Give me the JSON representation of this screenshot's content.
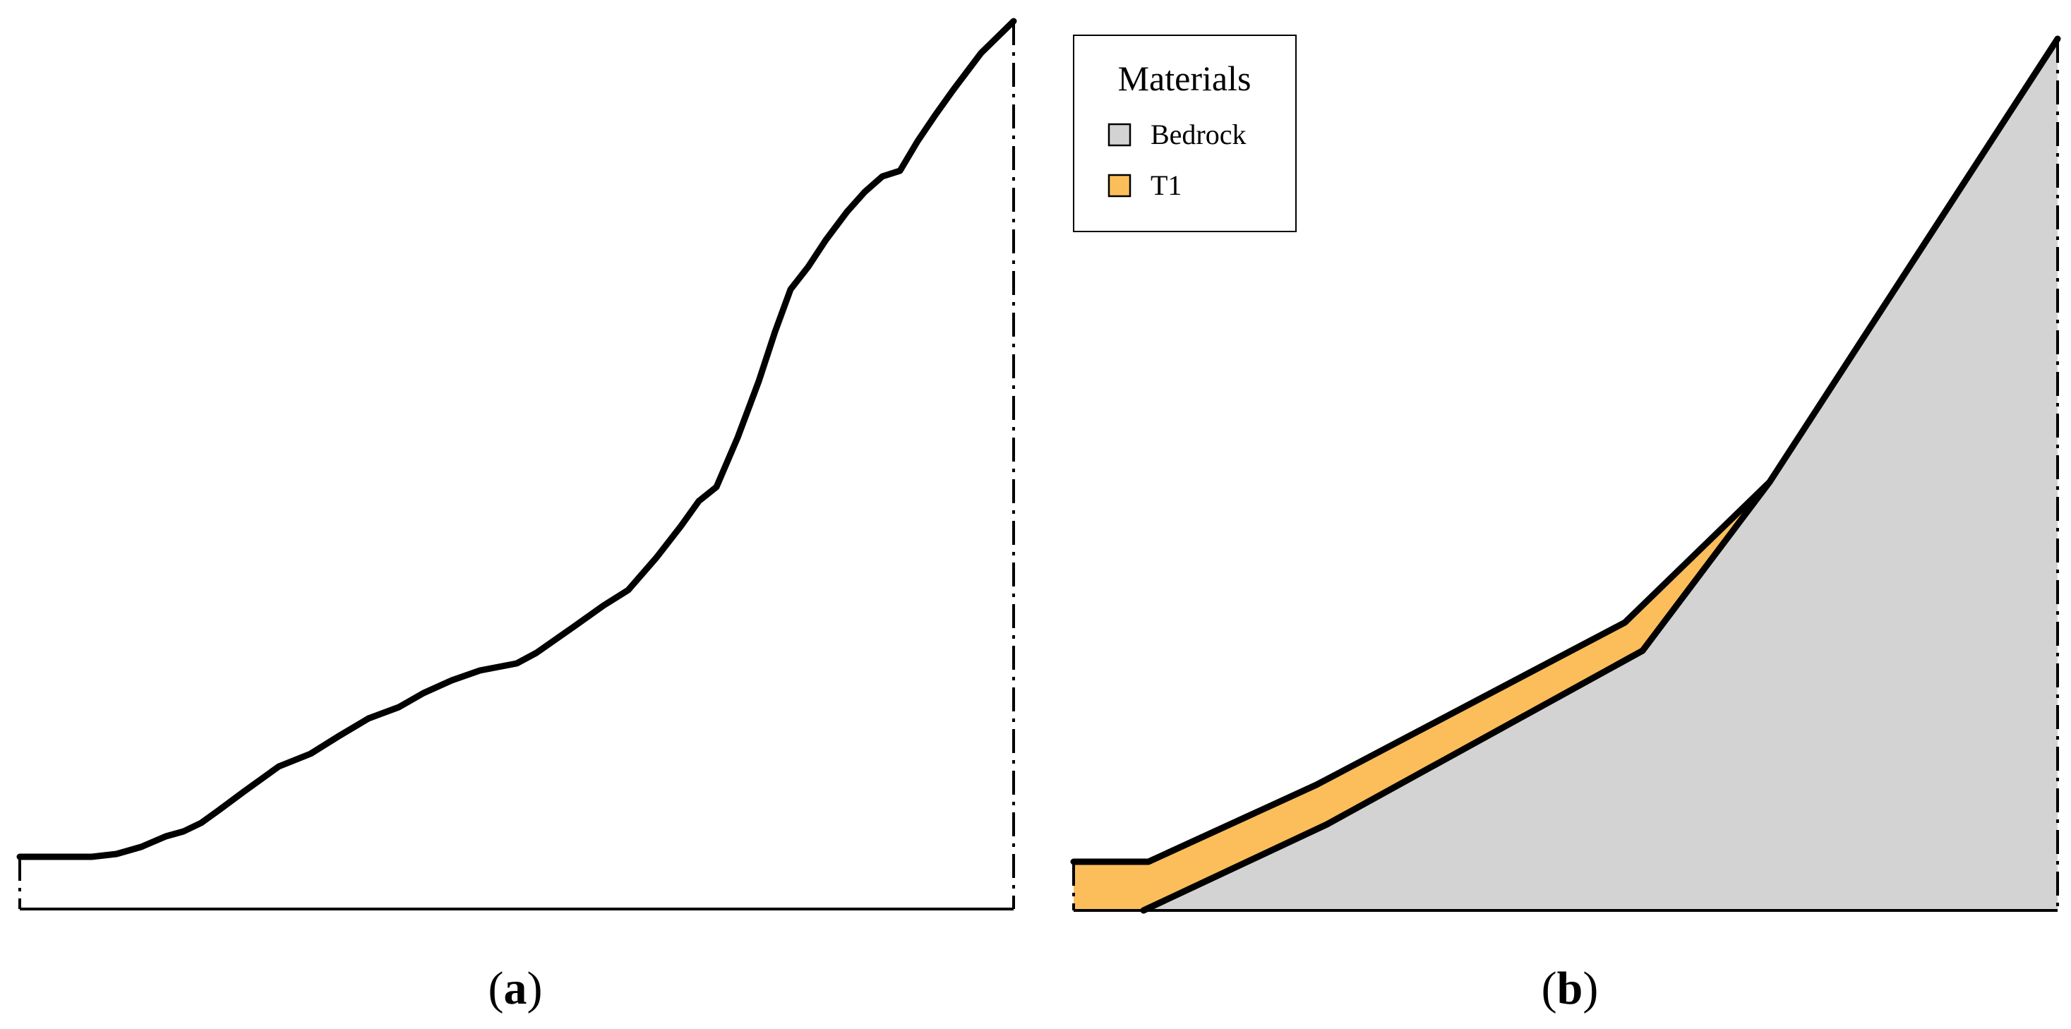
{
  "figure": {
    "panel_a": {
      "open": "(",
      "letter": "a",
      "close": ")"
    },
    "panel_b": {
      "open": "(",
      "letter": "b",
      "close": ")"
    }
  },
  "legend": {
    "title": "Materials",
    "items": [
      {
        "label": "Bedrock",
        "color": "#d3d3d3"
      },
      {
        "label": "T1",
        "color": "#fbbe5b"
      }
    ]
  },
  "colors": {
    "line": "#000000",
    "bedrock": "#d3d3d3",
    "t1": "#fbbe5b",
    "background": "#ffffff"
  }
}
